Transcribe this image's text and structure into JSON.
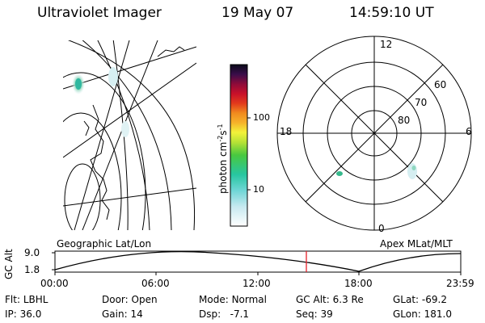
{
  "header": {
    "title": "Ultraviolet Imager",
    "date": "19 May 07",
    "time": "14:59:10 UT"
  },
  "geo_panel": {
    "label": "Geographic Lat/Lon"
  },
  "polar_panel": {
    "label": "Apex MLat/MLT",
    "mlt_labels": {
      "top": "12",
      "left": "18",
      "right": "6",
      "bottom": "0"
    },
    "mlat_labels": [
      "60",
      "70",
      "80"
    ]
  },
  "colorbar": {
    "label_text": "photon cm",
    "label_exp1": "-2",
    "label_s": "s",
    "label_exp2": "-1",
    "ticks": [
      "100",
      "10"
    ]
  },
  "altitude_plot": {
    "ylabel": "GC Alt",
    "ytick_high": "9.0",
    "ytick_low": "1.8",
    "xticks": [
      "00:00",
      "06:00",
      "12:00",
      "18:00",
      "23:59"
    ],
    "marker_time": "14:59"
  },
  "info": {
    "flt_label": "Flt:",
    "flt_value": "LBHL",
    "ip_label": "IP:",
    "ip_value": "36.0",
    "door_label": "Door:",
    "door_value": "Open",
    "gain_label": "Gain:",
    "gain_value": "14",
    "mode_label": "Mode:",
    "mode_value": "Normal",
    "dsp_label": "Dsp:",
    "dsp_value": "-7.1",
    "gcalt_label": "GC Alt:",
    "gcalt_value": "6.3 Re",
    "seq_label": "Seq:",
    "seq_value": "39",
    "glat_label": "GLat:",
    "glat_value": "-69.2",
    "glon_label": "GLon:",
    "glon_value": "181.0"
  },
  "colors": {
    "marker": "#e8202a",
    "grid": "#000000"
  }
}
